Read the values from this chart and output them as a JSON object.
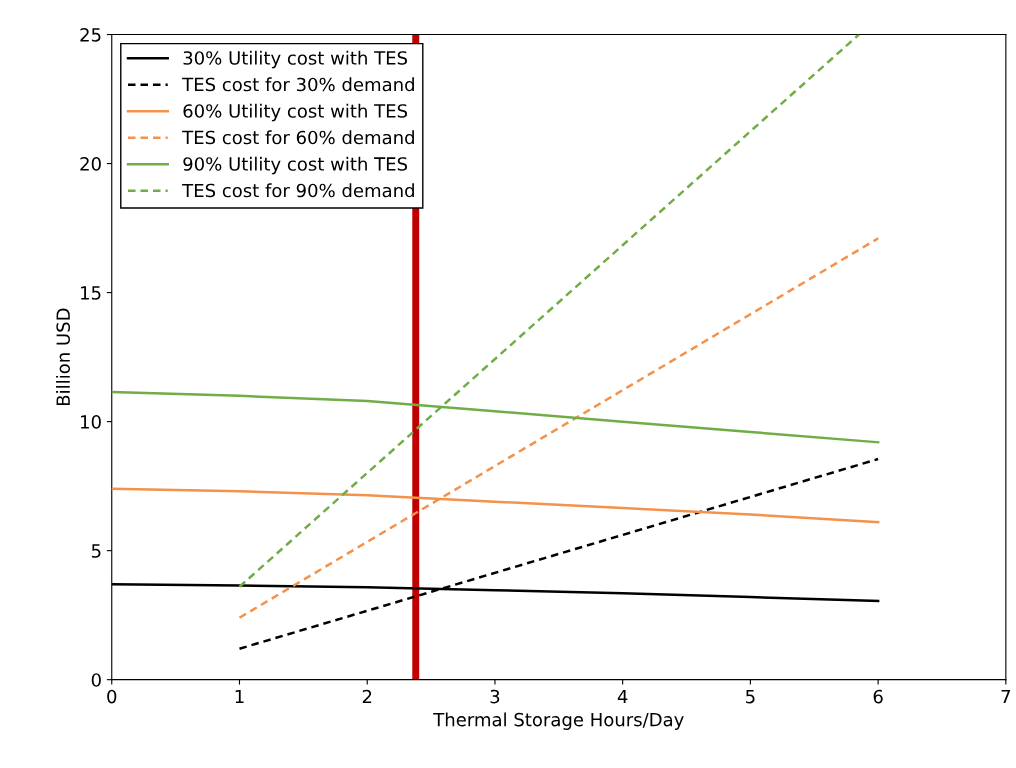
{
  "chart_data": {
    "type": "line",
    "xlabel": "Thermal Storage Hours/Day",
    "ylabel": "Billion USD",
    "xlim": [
      0,
      7
    ],
    "xticks": [
      0,
      1,
      2,
      3,
      4,
      5,
      6,
      7
    ],
    "ylim": [
      0,
      25
    ],
    "yticks": [
      0,
      5,
      10,
      15,
      20,
      25
    ],
    "grid": false,
    "legend": "top left",
    "marker": "none",
    "series": [
      {
        "name": "30% Utility cost with TES",
        "color": "#000000",
        "line_style": "solid",
        "x": [
          0,
          1,
          2,
          3,
          4,
          5,
          6
        ],
        "values": [
          3.7,
          3.65,
          3.58,
          3.47,
          3.35,
          3.2,
          3.05
        ]
      },
      {
        "name": "TES cost for 30% demand",
        "color": "#000000",
        "line_style": "dashed",
        "x": [
          1,
          6
        ],
        "values": [
          1.2,
          8.55
        ]
      },
      {
        "name": "60% Utility cost with TES",
        "color": "#f4914a",
        "line_style": "solid",
        "x": [
          0,
          1,
          2,
          3,
          4,
          5,
          6
        ],
        "values": [
          7.4,
          7.3,
          7.15,
          6.9,
          6.65,
          6.4,
          6.1
        ]
      },
      {
        "name": "TES cost for 60% demand",
        "color": "#f4914a",
        "line_style": "dashed",
        "x": [
          1,
          6
        ],
        "values": [
          2.4,
          17.1
        ]
      },
      {
        "name": "90% Utility cost with TES",
        "color": "#70ad47",
        "line_style": "solid",
        "x": [
          0,
          1,
          2,
          3,
          4,
          5,
          6
        ],
        "values": [
          11.15,
          11.0,
          10.8,
          10.4,
          10.0,
          9.6,
          9.2
        ]
      },
      {
        "name": "TES cost for 90% demand",
        "color": "#70ad47",
        "line_style": "dashed",
        "x": [
          1,
          5.85
        ],
        "values": [
          3.6,
          25
        ]
      }
    ],
    "ref_lines": [
      {
        "axis": "x",
        "value": 2.38,
        "label": null,
        "color": "#c00000"
      }
    ]
  }
}
